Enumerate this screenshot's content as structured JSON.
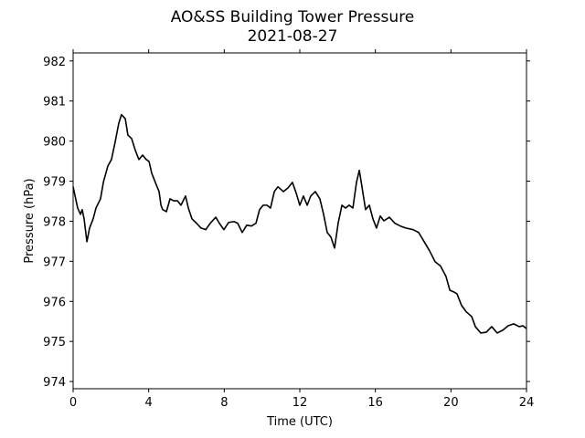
{
  "chart_data": {
    "type": "line",
    "title": "AO&SS Building Tower Pressure",
    "subtitle": "2021-08-27",
    "x_label": "Time (UTC)",
    "y_label": "Pressure (hPa)",
    "xlim": [
      0,
      24
    ],
    "xticks": [
      0,
      4,
      8,
      12,
      16,
      20,
      24
    ],
    "ylim": [
      973.82,
      982.2
    ],
    "yticks": [
      974,
      975,
      976,
      977,
      978,
      979,
      980,
      981,
      982
    ],
    "series": [
      {
        "name": "Pressure",
        "color": "#000000",
        "x": [
          0,
          0.24,
          0.39,
          0.48,
          0.58,
          0.73,
          0.87,
          1.06,
          1.21,
          1.45,
          1.6,
          1.84,
          2.03,
          2.23,
          2.42,
          2.56,
          2.76,
          2.9,
          3.1,
          3.29,
          3.48,
          3.68,
          3.87,
          4.02,
          4.16,
          4.35,
          4.55,
          4.65,
          4.74,
          4.94,
          5.13,
          5.32,
          5.52,
          5.71,
          5.95,
          6.1,
          6.29,
          6.53,
          6.77,
          7.02,
          7.26,
          7.55,
          7.74,
          7.98,
          8.23,
          8.52,
          8.71,
          8.95,
          9.19,
          9.44,
          9.68,
          9.87,
          10.06,
          10.26,
          10.45,
          10.65,
          10.84,
          11.13,
          11.37,
          11.61,
          11.81,
          12.0,
          12.19,
          12.39,
          12.58,
          12.82,
          13.06,
          13.26,
          13.45,
          13.65,
          13.84,
          14.03,
          14.23,
          14.42,
          14.61,
          14.81,
          15.0,
          15.15,
          15.29,
          15.48,
          15.68,
          15.87,
          16.06,
          16.26,
          16.45,
          16.74,
          17.03,
          17.32,
          17.61,
          18.0,
          18.29,
          18.58,
          18.87,
          19.16,
          19.45,
          19.74,
          19.94,
          20.13,
          20.32,
          20.56,
          20.81,
          21.1,
          21.29,
          21.58,
          21.87,
          22.16,
          22.45,
          22.74,
          23.03,
          23.32,
          23.61,
          23.81,
          24.0
        ],
        "values": [
          978.86,
          978.33,
          978.17,
          978.29,
          978.06,
          977.49,
          977.83,
          978.06,
          978.33,
          978.56,
          978.97,
          979.38,
          979.54,
          979.99,
          980.45,
          980.66,
          980.56,
          980.15,
          980.06,
          979.77,
          979.54,
          979.65,
          979.54,
          979.49,
          979.2,
          978.97,
          978.74,
          978.4,
          978.29,
          978.24,
          978.56,
          978.51,
          978.51,
          978.4,
          978.63,
          978.33,
          978.06,
          977.95,
          977.83,
          977.79,
          977.95,
          978.1,
          977.95,
          977.79,
          977.97,
          977.99,
          977.95,
          977.72,
          977.9,
          977.88,
          977.95,
          978.29,
          978.4,
          978.4,
          978.33,
          978.74,
          978.86,
          978.74,
          978.83,
          978.97,
          978.7,
          978.4,
          978.63,
          978.4,
          978.63,
          978.74,
          978.56,
          978.17,
          977.72,
          977.6,
          977.33,
          977.95,
          978.4,
          978.33,
          978.4,
          978.33,
          978.97,
          979.27,
          978.86,
          978.29,
          978.4,
          978.06,
          977.83,
          978.13,
          978.01,
          978.1,
          977.95,
          977.88,
          977.83,
          977.79,
          977.72,
          977.49,
          977.26,
          976.99,
          976.88,
          976.62,
          976.28,
          976.24,
          976.19,
          975.9,
          975.74,
          975.62,
          975.37,
          975.21,
          975.23,
          975.37,
          975.21,
          975.28,
          975.39,
          975.44,
          975.37,
          975.39,
          975.32
        ]
      }
    ]
  }
}
